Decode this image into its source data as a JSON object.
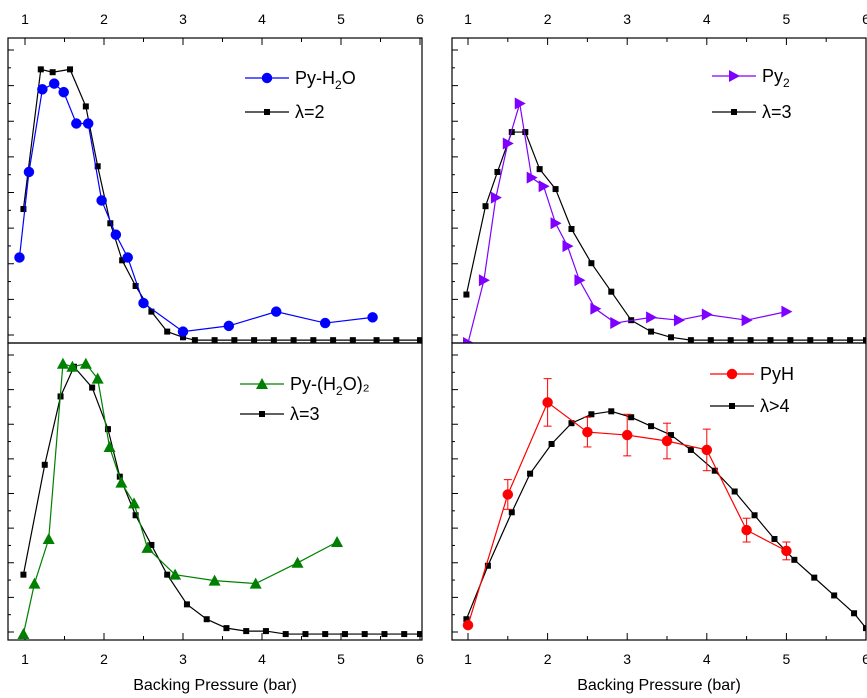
{
  "chart_data": [
    {
      "type": "line",
      "panel": "top-left",
      "xlabel": "",
      "top_tick_labels": [
        "1",
        "2",
        "3",
        "4",
        "5",
        "6"
      ],
      "bottom_tick_labels": [],
      "xlim": [
        0.9,
        6.0
      ],
      "ylim": [
        0,
        1.07
      ],
      "legend_placement": "top-right",
      "series": [
        {
          "name": "Py-H₂O",
          "label_base": "Py-H",
          "label_sub": "2",
          "label_tail": "O",
          "color": "#0000ff",
          "marker": "circle",
          "x": [
            0.93,
            1.05,
            1.22,
            1.37,
            1.49,
            1.65,
            1.8,
            1.97,
            2.15,
            2.3,
            2.5,
            3.0,
            3.58,
            4.18,
            4.8,
            5.4
          ],
          "y": [
            0.3,
            0.6,
            0.89,
            0.91,
            0.88,
            0.77,
            0.77,
            0.5,
            0.38,
            0.3,
            0.14,
            0.04,
            0.06,
            0.11,
            0.07,
            0.09
          ]
        },
        {
          "name": "λ=2",
          "label_base": "λ=2",
          "label_sub": "",
          "label_tail": "",
          "color": "#000000",
          "marker": "square",
          "x": [
            0.98,
            1.2,
            1.35,
            1.57,
            1.77,
            1.92,
            2.08,
            2.23,
            2.4,
            2.6,
            2.8,
            3.0,
            3.15,
            3.4,
            3.65,
            3.9,
            4.15,
            4.4,
            4.65,
            4.9,
            5.15,
            5.45,
            5.7,
            6.0
          ],
          "y": [
            0.47,
            0.96,
            0.95,
            0.96,
            0.83,
            0.62,
            0.42,
            0.29,
            0.2,
            0.11,
            0.04,
            0.02,
            0.01,
            0.01,
            0.01,
            0.01,
            0.01,
            0.01,
            0.01,
            0.01,
            0.01,
            0.01,
            0.01,
            0.01
          ]
        }
      ]
    },
    {
      "type": "line",
      "panel": "top-right",
      "xlabel": "",
      "top_tick_labels": [
        "1",
        "2",
        "3",
        "4",
        "5",
        "6"
      ],
      "bottom_tick_labels": [],
      "xlim": [
        0.9,
        6.0
      ],
      "ylim": [
        0,
        1.07
      ],
      "legend_placement": "top-right",
      "series": [
        {
          "name": "Py₂",
          "label_base": "Py",
          "label_sub": "2",
          "label_tail": "",
          "color": "#8000ff",
          "marker": "triangle-right",
          "x": [
            1.0,
            1.2,
            1.35,
            1.5,
            1.65,
            1.8,
            1.95,
            2.1,
            2.25,
            2.4,
            2.6,
            2.85,
            3.3,
            3.65,
            4.0,
            4.5,
            5.0
          ],
          "y": [
            0.0,
            0.22,
            0.51,
            0.7,
            0.84,
            0.58,
            0.55,
            0.42,
            0.34,
            0.22,
            0.12,
            0.07,
            0.09,
            0.08,
            0.1,
            0.08,
            0.11
          ]
        },
        {
          "name": "λ=3",
          "label_base": "λ=3",
          "label_sub": "",
          "label_tail": "",
          "color": "#000000",
          "marker": "square",
          "x": [
            0.98,
            1.22,
            1.37,
            1.55,
            1.72,
            1.9,
            2.1,
            2.3,
            2.55,
            2.8,
            3.05,
            3.3,
            3.55,
            3.8,
            4.05,
            4.3,
            4.55,
            4.8,
            5.05,
            5.3,
            5.55,
            5.8,
            6.0
          ],
          "y": [
            0.17,
            0.48,
            0.6,
            0.74,
            0.74,
            0.61,
            0.54,
            0.4,
            0.28,
            0.18,
            0.08,
            0.04,
            0.02,
            0.01,
            0.01,
            0.01,
            0.01,
            0.01,
            0.01,
            0.01,
            0.01,
            0.01,
            0.01
          ]
        }
      ]
    },
    {
      "type": "line",
      "panel": "bottom-left",
      "xlabel": "Backing Pressure (bar)",
      "top_tick_labels": [],
      "bottom_tick_labels": [
        "1",
        "2",
        "3",
        "4",
        "5",
        "6"
      ],
      "xlim": [
        0.9,
        6.0
      ],
      "ylim": [
        0,
        1.0
      ],
      "legend_placement": "top-right",
      "series": [
        {
          "name": "Py-(H₂O)₂",
          "label_base": "Py-(H",
          "label_sub": "2",
          "label_tail": "O)₂",
          "color": "#008000",
          "marker": "triangle-up",
          "x": [
            0.98,
            1.12,
            1.3,
            1.48,
            1.6,
            1.77,
            1.92,
            2.07,
            2.22,
            2.38,
            2.55,
            2.9,
            3.4,
            3.92,
            4.45,
            4.95
          ],
          "y": [
            0.02,
            0.19,
            0.34,
            0.93,
            0.92,
            0.93,
            0.88,
            0.65,
            0.53,
            0.46,
            0.31,
            0.22,
            0.2,
            0.19,
            0.26,
            0.33
          ]
        },
        {
          "name": "λ=3",
          "label_base": "λ=3",
          "label_sub": "",
          "label_tail": "",
          "color": "#000000",
          "marker": "square",
          "x": [
            0.98,
            1.25,
            1.45,
            1.62,
            1.85,
            2.05,
            2.2,
            2.4,
            2.6,
            2.8,
            3.05,
            3.3,
            3.55,
            3.8,
            4.05,
            4.3,
            4.55,
            4.8,
            5.05,
            5.3,
            5.55,
            5.8,
            6.0
          ],
          "y": [
            0.22,
            0.59,
            0.82,
            0.92,
            0.85,
            0.71,
            0.55,
            0.42,
            0.32,
            0.22,
            0.12,
            0.07,
            0.04,
            0.03,
            0.03,
            0.02,
            0.02,
            0.02,
            0.02,
            0.02,
            0.02,
            0.02,
            0.02
          ]
        }
      ]
    },
    {
      "type": "line",
      "panel": "bottom-right",
      "xlabel": "Backing Pressure (bar)",
      "top_tick_labels": [],
      "bottom_tick_labels": [
        "1",
        "2",
        "3",
        "4",
        "5",
        "6"
      ],
      "xlim": [
        0.95,
        6.0
      ],
      "ylim": [
        0,
        1.0
      ],
      "legend_placement": "top-right",
      "series": [
        {
          "name": "PyH",
          "label_base": "PyH",
          "label_sub": "",
          "label_tail": "",
          "color": "#ff0000",
          "marker": "circle",
          "x": [
            1.0,
            1.5,
            2.0,
            2.5,
            3.0,
            3.5,
            4.0,
            4.5,
            5.0
          ],
          "y": [
            0.05,
            0.49,
            0.8,
            0.7,
            0.69,
            0.67,
            0.64,
            0.37,
            0.3
          ],
          "err": [
            0.0,
            0.05,
            0.08,
            0.05,
            0.07,
            0.06,
            0.07,
            0.04,
            0.03
          ]
        },
        {
          "name": "λ>4",
          "label_base": "λ>4",
          "label_sub": "",
          "label_tail": "",
          "color": "#000000",
          "marker": "square",
          "x": [
            0.98,
            1.25,
            1.55,
            1.78,
            2.05,
            2.3,
            2.55,
            2.8,
            3.05,
            3.3,
            3.55,
            3.8,
            4.1,
            4.35,
            4.6,
            4.85,
            5.1,
            5.35,
            5.6,
            5.85,
            6.0
          ],
          "y": [
            0.07,
            0.25,
            0.43,
            0.56,
            0.66,
            0.73,
            0.76,
            0.77,
            0.75,
            0.72,
            0.69,
            0.64,
            0.57,
            0.5,
            0.42,
            0.34,
            0.27,
            0.21,
            0.15,
            0.09,
            0.04
          ]
        }
      ]
    }
  ]
}
